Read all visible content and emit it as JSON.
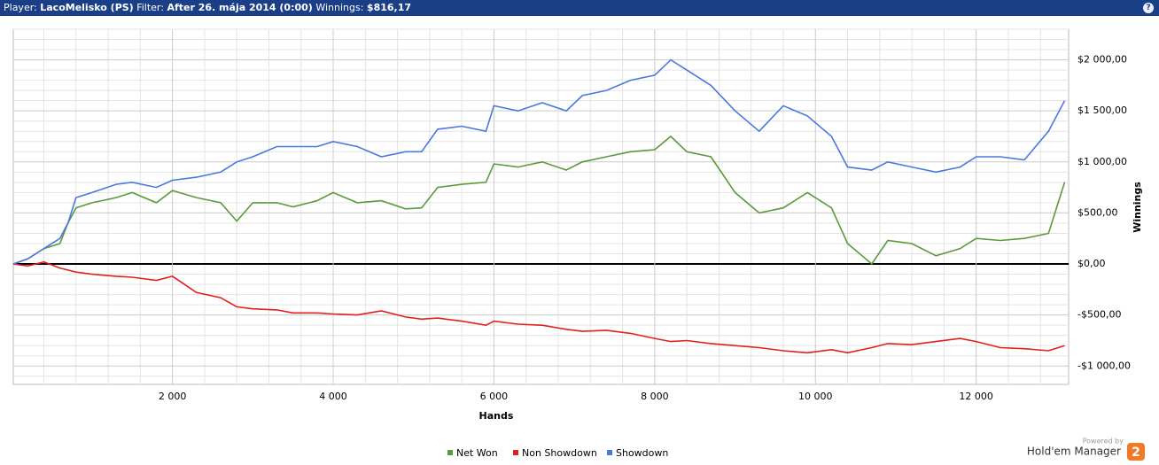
{
  "header": {
    "player_label": "Player:",
    "player": "LacoMelisko (PS)",
    "filter_label": "Filter:",
    "filter": "After 26. mája 2014 (0:00)",
    "winnings_label": "Winnings:",
    "winnings": "$816,17",
    "help": "?"
  },
  "chart_data": {
    "type": "line",
    "x_label": "Hands",
    "y_label": "Winnings",
    "x": [
      20,
      200,
      400,
      600,
      700,
      800,
      1000,
      1300,
      1500,
      1800,
      2000,
      2300,
      2600,
      2800,
      3000,
      3300,
      3500,
      3800,
      4000,
      4300,
      4600,
      4900,
      5100,
      5300,
      5600,
      5900,
      6000,
      6300,
      6600,
      6900,
      7100,
      7400,
      7700,
      8000,
      8200,
      8400,
      8700,
      9000,
      9300,
      9600,
      9900,
      10200,
      10400,
      10700,
      10900,
      11200,
      11500,
      11800,
      12000,
      12300,
      12600,
      12900,
      13100
    ],
    "series": [
      {
        "name": "Net Won",
        "color": "#5b9a3a",
        "values": [
          0,
          50,
          150,
          200,
          400,
          550,
          600,
          650,
          700,
          600,
          720,
          650,
          600,
          420,
          600,
          600,
          560,
          620,
          700,
          600,
          620,
          540,
          550,
          750,
          780,
          800,
          980,
          950,
          1000,
          920,
          1000,
          1050,
          1100,
          1120,
          1250,
          1100,
          1050,
          700,
          500,
          550,
          700,
          550,
          200,
          0,
          230,
          200,
          80,
          150,
          250,
          230,
          250,
          300,
          800
        ]
      },
      {
        "name": "Non Showdown",
        "color": "#e21f1f",
        "values": [
          0,
          -20,
          20,
          -40,
          -60,
          -80,
          -100,
          -120,
          -130,
          -160,
          -120,
          -280,
          -330,
          -420,
          -440,
          -450,
          -480,
          -480,
          -490,
          -500,
          -460,
          -520,
          -540,
          -530,
          -560,
          -600,
          -560,
          -590,
          -600,
          -640,
          -660,
          -650,
          -680,
          -730,
          -760,
          -750,
          -780,
          -800,
          -820,
          -850,
          -870,
          -840,
          -870,
          -820,
          -780,
          -790,
          -760,
          -730,
          -760,
          -820,
          -830,
          -850,
          -800
        ]
      },
      {
        "name": "Showdown",
        "color": "#4a78e0",
        "values": [
          0,
          50,
          150,
          250,
          400,
          650,
          700,
          780,
          800,
          750,
          820,
          850,
          900,
          1000,
          1050,
          1150,
          1150,
          1150,
          1200,
          1150,
          1050,
          1100,
          1100,
          1320,
          1350,
          1300,
          1550,
          1500,
          1580,
          1500,
          1650,
          1700,
          1800,
          1850,
          2000,
          1900,
          1750,
          1500,
          1300,
          1550,
          1450,
          1250,
          950,
          920,
          1000,
          950,
          900,
          950,
          1050,
          1050,
          1020,
          1300,
          1600
        ]
      }
    ],
    "xlim": [
      20,
      13150
    ],
    "ylim": [
      -1180,
      2300
    ],
    "xticks": [
      {
        "value": 2000,
        "label": "2 000"
      },
      {
        "value": 4000,
        "label": "4 000"
      },
      {
        "value": 6000,
        "label": "6 000"
      },
      {
        "value": 8000,
        "label": "8 000"
      },
      {
        "value": 10000,
        "label": "10 000"
      },
      {
        "value": 12000,
        "label": "12 000"
      }
    ],
    "yticks": [
      {
        "value": -1000,
        "label": "-$1 000,00"
      },
      {
        "value": -500,
        "label": "-$500,00"
      },
      {
        "value": 0,
        "label": "$0,00"
      },
      {
        "value": 500,
        "label": "$500,00"
      },
      {
        "value": 1000,
        "label": "$1 000,00"
      },
      {
        "value": 1500,
        "label": "$1 500,00"
      },
      {
        "value": 2000,
        "label": "$2 000,00"
      }
    ],
    "grid": true,
    "legend": "bottom"
  },
  "footer": {
    "powered_by": "Powered by",
    "brand": "Hold'em Manager",
    "logo": "2"
  }
}
